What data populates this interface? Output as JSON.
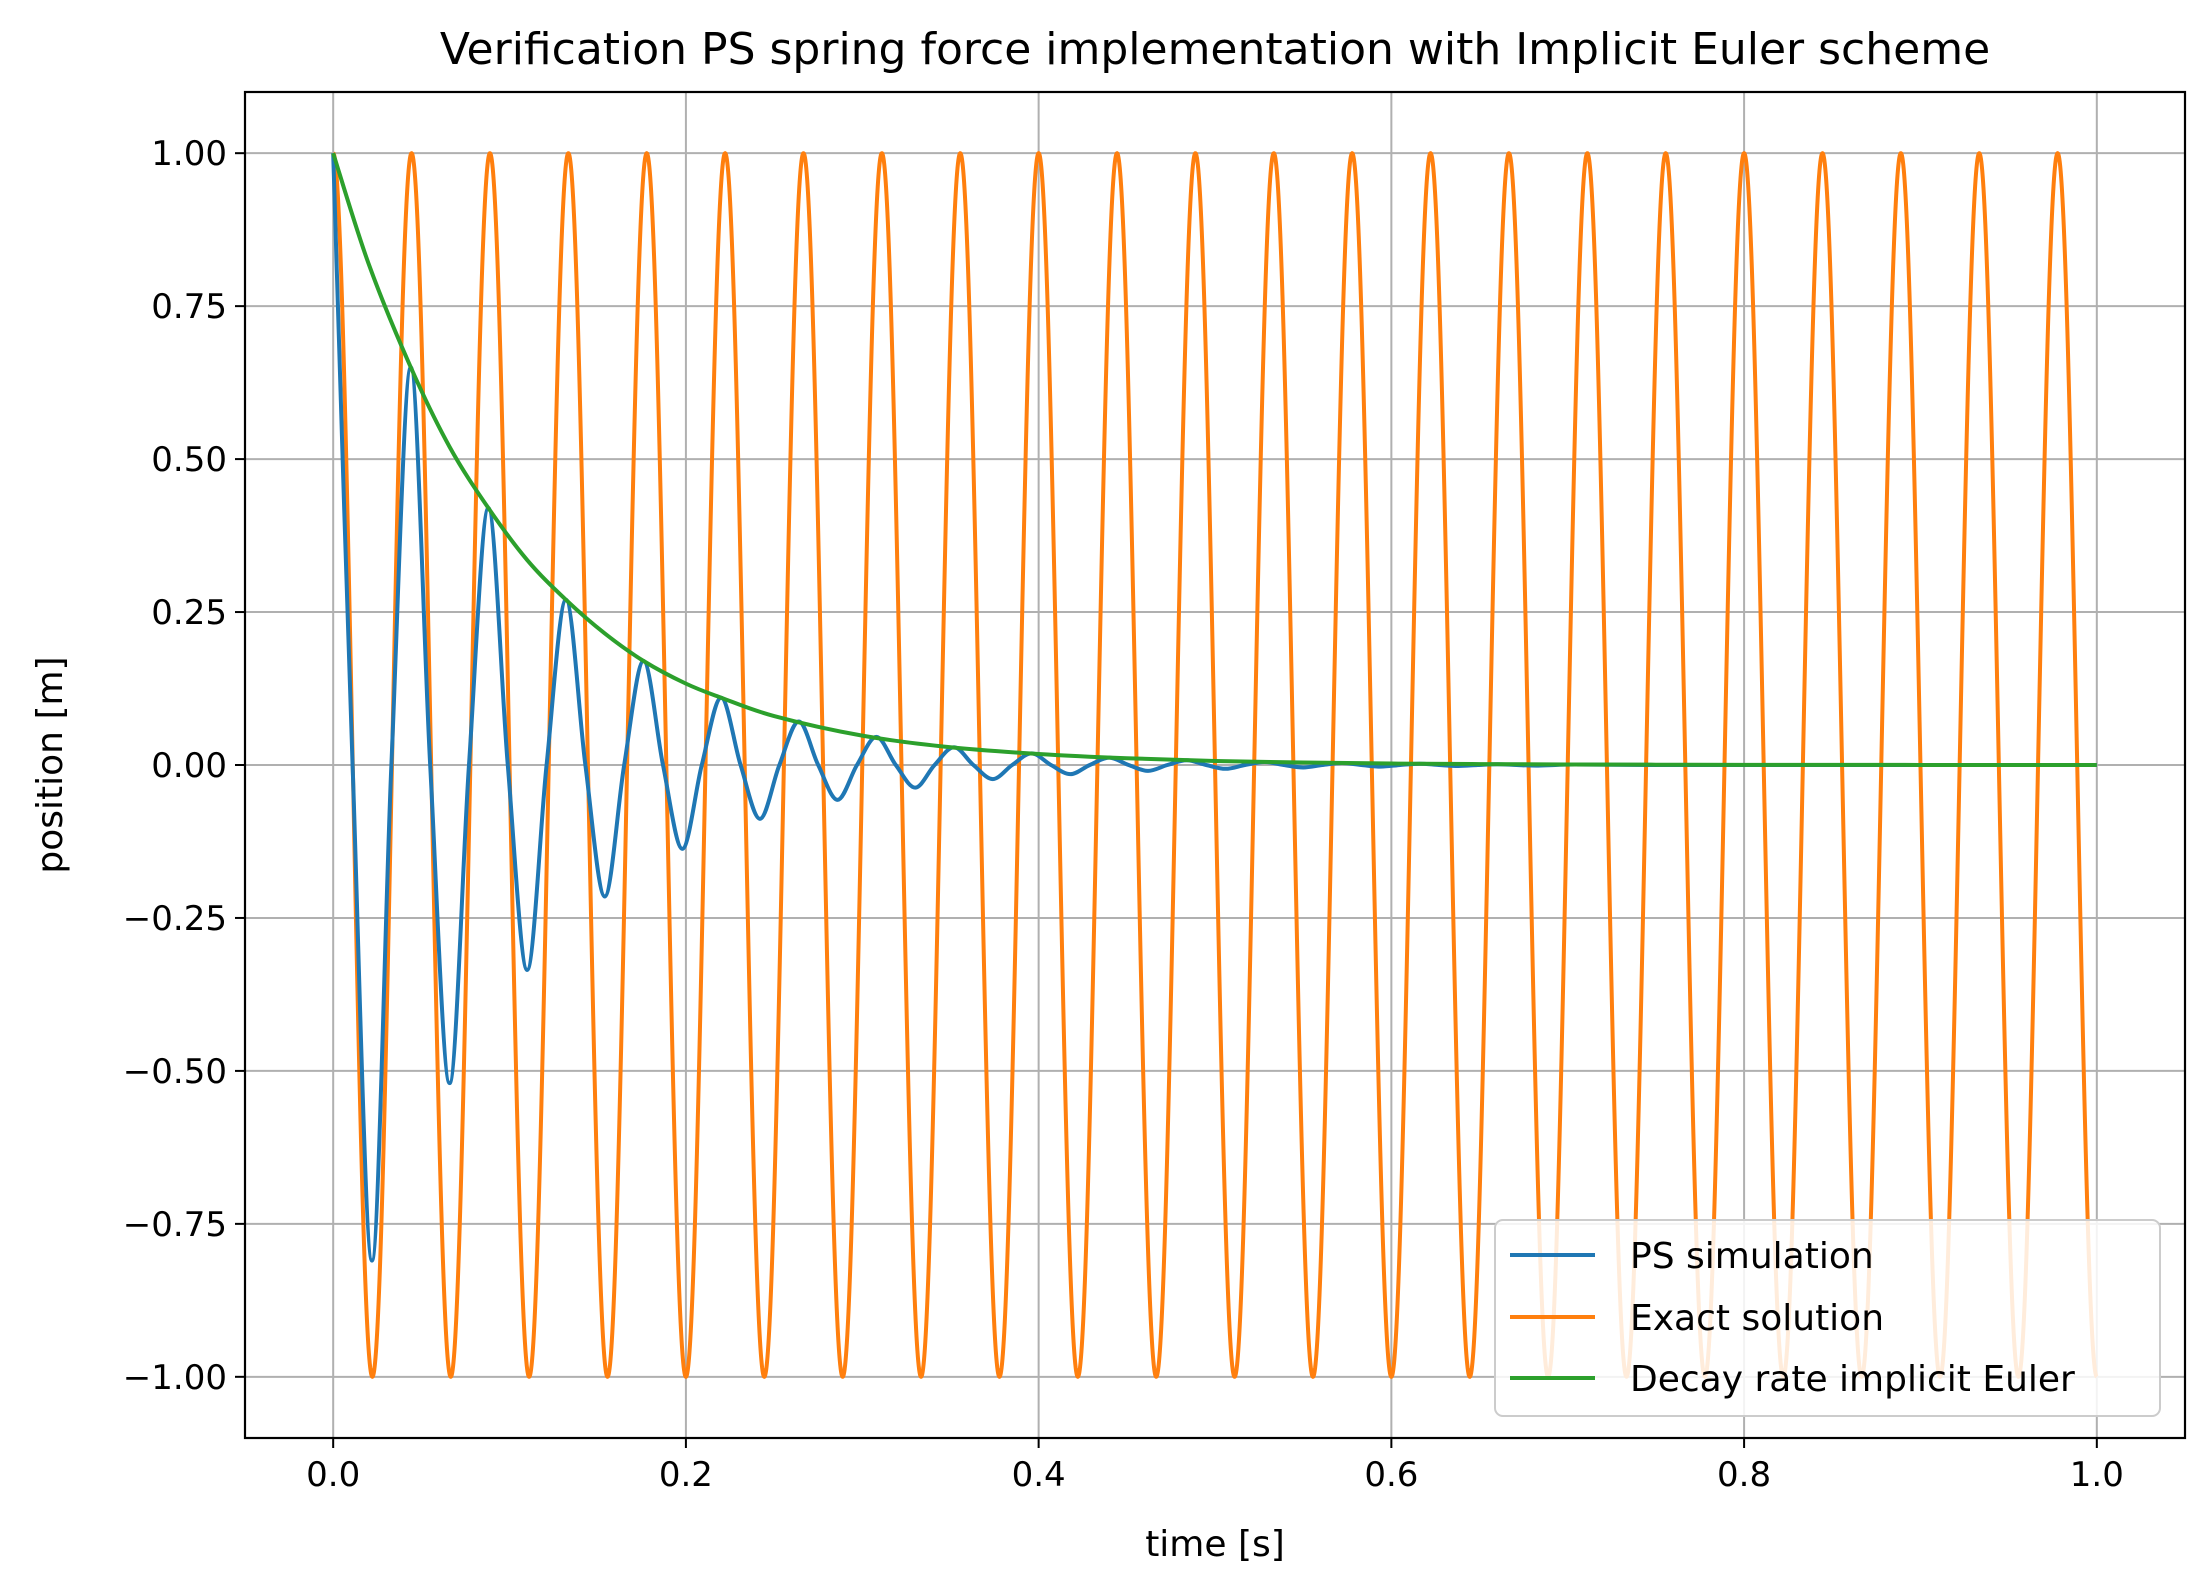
{
  "chart_data": {
    "type": "line",
    "title": "Verification PS spring force implementation with Implicit Euler scheme",
    "xlabel": "time [s]",
    "ylabel": "position [m]",
    "xlim": [
      -0.05,
      1.05
    ],
    "ylim": [
      -1.1,
      1.1
    ],
    "grid": true,
    "legend_position": "lower-right",
    "x_ticks": [
      0.0,
      0.2,
      0.4,
      0.6,
      0.8,
      1.0
    ],
    "x_tick_labels": [
      "0.0",
      "0.2",
      "0.4",
      "0.6",
      "0.8",
      "1.0"
    ],
    "y_ticks": [
      -1.0,
      -0.75,
      -0.5,
      -0.25,
      0.0,
      0.25,
      0.5,
      0.75,
      1.0
    ],
    "y_tick_labels": [
      "−1.00",
      "−0.75",
      "−0.50",
      "−0.25",
      "0.00",
      "0.25",
      "0.50",
      "0.75",
      "1.00"
    ],
    "series": [
      {
        "name": "PS simulation",
        "color": "#1f77b4",
        "x": [
          0.0,
          0.011,
          0.022,
          0.033,
          0.044,
          0.055,
          0.066,
          0.077,
          0.088,
          0.099,
          0.11,
          0.121,
          0.132,
          0.143,
          0.154,
          0.165,
          0.176,
          0.187,
          0.198,
          0.209,
          0.22,
          0.231,
          0.242,
          0.253,
          0.264,
          0.275,
          0.286,
          0.297,
          0.308,
          0.319,
          0.33,
          0.341,
          0.352,
          0.363,
          0.374,
          0.385,
          0.396,
          0.407,
          0.418,
          0.429,
          0.44,
          0.451,
          0.462,
          0.473,
          0.484,
          0.495,
          0.506,
          0.517,
          0.528,
          0.539,
          0.55,
          0.561,
          0.572,
          0.583,
          0.594,
          0.605,
          0.616,
          0.627,
          0.638,
          0.649,
          0.66,
          0.671,
          0.682,
          0.693,
          0.704,
          0.75,
          0.8,
          0.85,
          0.9,
          0.95,
          1.0
        ],
        "y": [
          1.0,
          0.0,
          -0.81,
          0.0,
          0.65,
          0.0,
          -0.52,
          0.0,
          0.42,
          0.0,
          -0.335,
          0.0,
          0.27,
          0.0,
          -0.215,
          0.0,
          0.17,
          0.0,
          -0.137,
          0.0,
          0.11,
          0.0,
          -0.088,
          0.0,
          0.071,
          0.0,
          -0.057,
          0.0,
          0.046,
          0.0,
          -0.037,
          0.0,
          0.029,
          0.0,
          -0.023,
          0.0,
          0.019,
          0.0,
          -0.015,
          0.0,
          0.012,
          0.0,
          -0.0096,
          0.0,
          0.0077,
          0.0,
          -0.0062,
          0.0,
          0.005,
          0.0,
          -0.004,
          0.0,
          0.0032,
          0.0,
          -0.0026,
          0.0,
          0.0021,
          0.0,
          -0.0016,
          0.0,
          0.0013,
          0.0,
          -0.001,
          0.0,
          0.0008,
          0.0,
          0.0,
          0.0,
          0.0,
          0.0,
          0.0
        ]
      },
      {
        "name": "Exact solution",
        "color": "#ff7f0e",
        "formula": "cos(2*pi*22.5*t)",
        "frequency_hz": 22.5,
        "t_range": [
          0.0,
          1.0
        ]
      },
      {
        "name": "Decay rate implicit Euler",
        "color": "#2ca02c",
        "x": [
          0.0,
          0.02,
          0.044,
          0.066,
          0.088,
          0.11,
          0.132,
          0.154,
          0.176,
          0.2,
          0.22,
          0.25,
          0.3,
          0.35,
          0.4,
          0.45,
          0.5,
          0.55,
          0.6,
          0.65,
          0.7,
          0.75,
          0.8,
          0.85,
          0.9,
          0.95,
          1.0
        ],
        "y": [
          1.0,
          0.82,
          0.65,
          0.52,
          0.42,
          0.335,
          0.27,
          0.215,
          0.17,
          0.133,
          0.11,
          0.08,
          0.048,
          0.029,
          0.018,
          0.011,
          0.0066,
          0.004,
          0.0024,
          0.0015,
          0.0009,
          0.0005,
          0.0003,
          0.0002,
          0.0001,
          0.0,
          0.0
        ]
      }
    ]
  }
}
